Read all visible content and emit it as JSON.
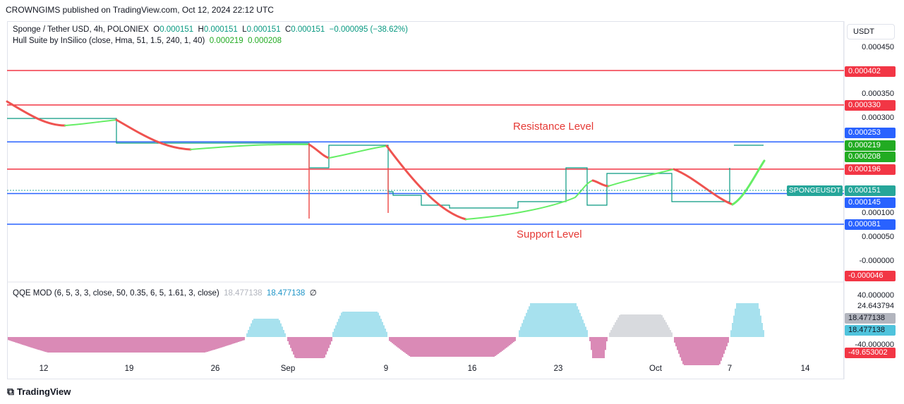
{
  "header": {
    "published": "CROWNGIMS published on TradingView.com, Oct 12, 2024 22:12 UTC"
  },
  "legend": {
    "symbol": "Sponge / Tether USD, 4h, POLONIEX",
    "o_label": "O",
    "o": "0.000151",
    "h_label": "H",
    "h": "0.000151",
    "l_label": "L",
    "l": "0.000151",
    "c_label": "C",
    "c": "0.000151",
    "change": "−0.000095 (−38.62%)",
    "hull_name": "Hull Suite by InSilico (close, Hma, 51, 1.5, 240, 1, 40)",
    "hull_v1": "0.000219",
    "hull_v2": "0.000208",
    "qqe_name": "QQE MOD (6, 5, 3, 3, close, 50, 0.35, 6, 5, 1.61, 3, close)",
    "qqe_v1": "18.477138",
    "qqe_v2": "18.477138",
    "qqe_sym": "∅"
  },
  "currency_button": "USDT",
  "symbol_tag": "SPONGEUSDT",
  "annotations": {
    "resistance": "Resistance Level",
    "support": "Support Level"
  },
  "footer": {
    "brand": "TradingView"
  },
  "colors": {
    "red": "#f23645",
    "blue": "#2962ff",
    "green": "#089981",
    "hull_red": "#ef5350",
    "hull_green": "#66ee66",
    "qqe_pink": "#b5166e",
    "qqe_cyan": "#4fc3dc"
  },
  "chart_data": {
    "type": "line",
    "y_axis_ticks": [
      "0.000450",
      "0.000350",
      "0.000300",
      "0.000100",
      "0.000050",
      "-0.000000"
    ],
    "price_tags": [
      {
        "value": "0.000402",
        "color": "#f23645"
      },
      {
        "value": "0.000330",
        "color": "#f23645"
      },
      {
        "value": "0.000253",
        "color": "#2962ff"
      },
      {
        "value": "0.000219",
        "color": "#22ab22"
      },
      {
        "value": "0.000208",
        "color": "#22ab22"
      },
      {
        "value": "0.000196",
        "color": "#f23645"
      },
      {
        "value": "0.000151",
        "color": "#26a69a"
      },
      {
        "value": "0.000145",
        "color": "#2962ff"
      },
      {
        "value": "0.000081",
        "color": "#2962ff"
      },
      {
        "value": "-0.000046",
        "color": "#f23645"
      }
    ],
    "horizontal_levels": [
      {
        "value": 0.000402,
        "color": "#f23645"
      },
      {
        "value": 0.00033,
        "color": "#f23645"
      },
      {
        "value": 0.000253,
        "color": "#2962ff"
      },
      {
        "value": 0.000196,
        "color": "#f23645"
      },
      {
        "value": 0.000145,
        "color": "#2962ff"
      },
      {
        "value": 8.1e-05,
        "color": "#2962ff"
      }
    ],
    "x_ticks": [
      "12",
      "19",
      "26",
      "Sep",
      "9",
      "16",
      "23",
      "Oct",
      "7",
      "14"
    ],
    "qqe_axis_ticks": [
      {
        "value": "40.000000",
        "bg": "none"
      },
      {
        "value": "24.643794",
        "bg": "none"
      },
      {
        "value": "18.477138",
        "bg": "#b2b5be"
      },
      {
        "value": "18.477138",
        "bg": "#4fc3dc"
      },
      {
        "value": "-40.000000",
        "bg": "none"
      },
      {
        "value": "-49.653002",
        "bg": "#f23645"
      }
    ]
  }
}
